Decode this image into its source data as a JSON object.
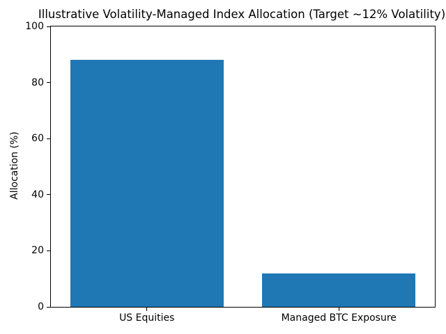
{
  "chart_data": {
    "type": "bar",
    "title": "Illustrative Volatility-Managed Index Allocation (Target ~12% Volatility)",
    "xlabel": "",
    "ylabel": "Allocation (%)",
    "categories": [
      "US Equities",
      "Managed BTC Exposure"
    ],
    "values": [
      88,
      12
    ],
    "ylim": [
      0,
      100
    ],
    "yticks": [
      0,
      20,
      40,
      60,
      80,
      100
    ],
    "bar_color": "#1f77b4",
    "background_color": "#ffffff",
    "grid": false,
    "legend": null
  }
}
